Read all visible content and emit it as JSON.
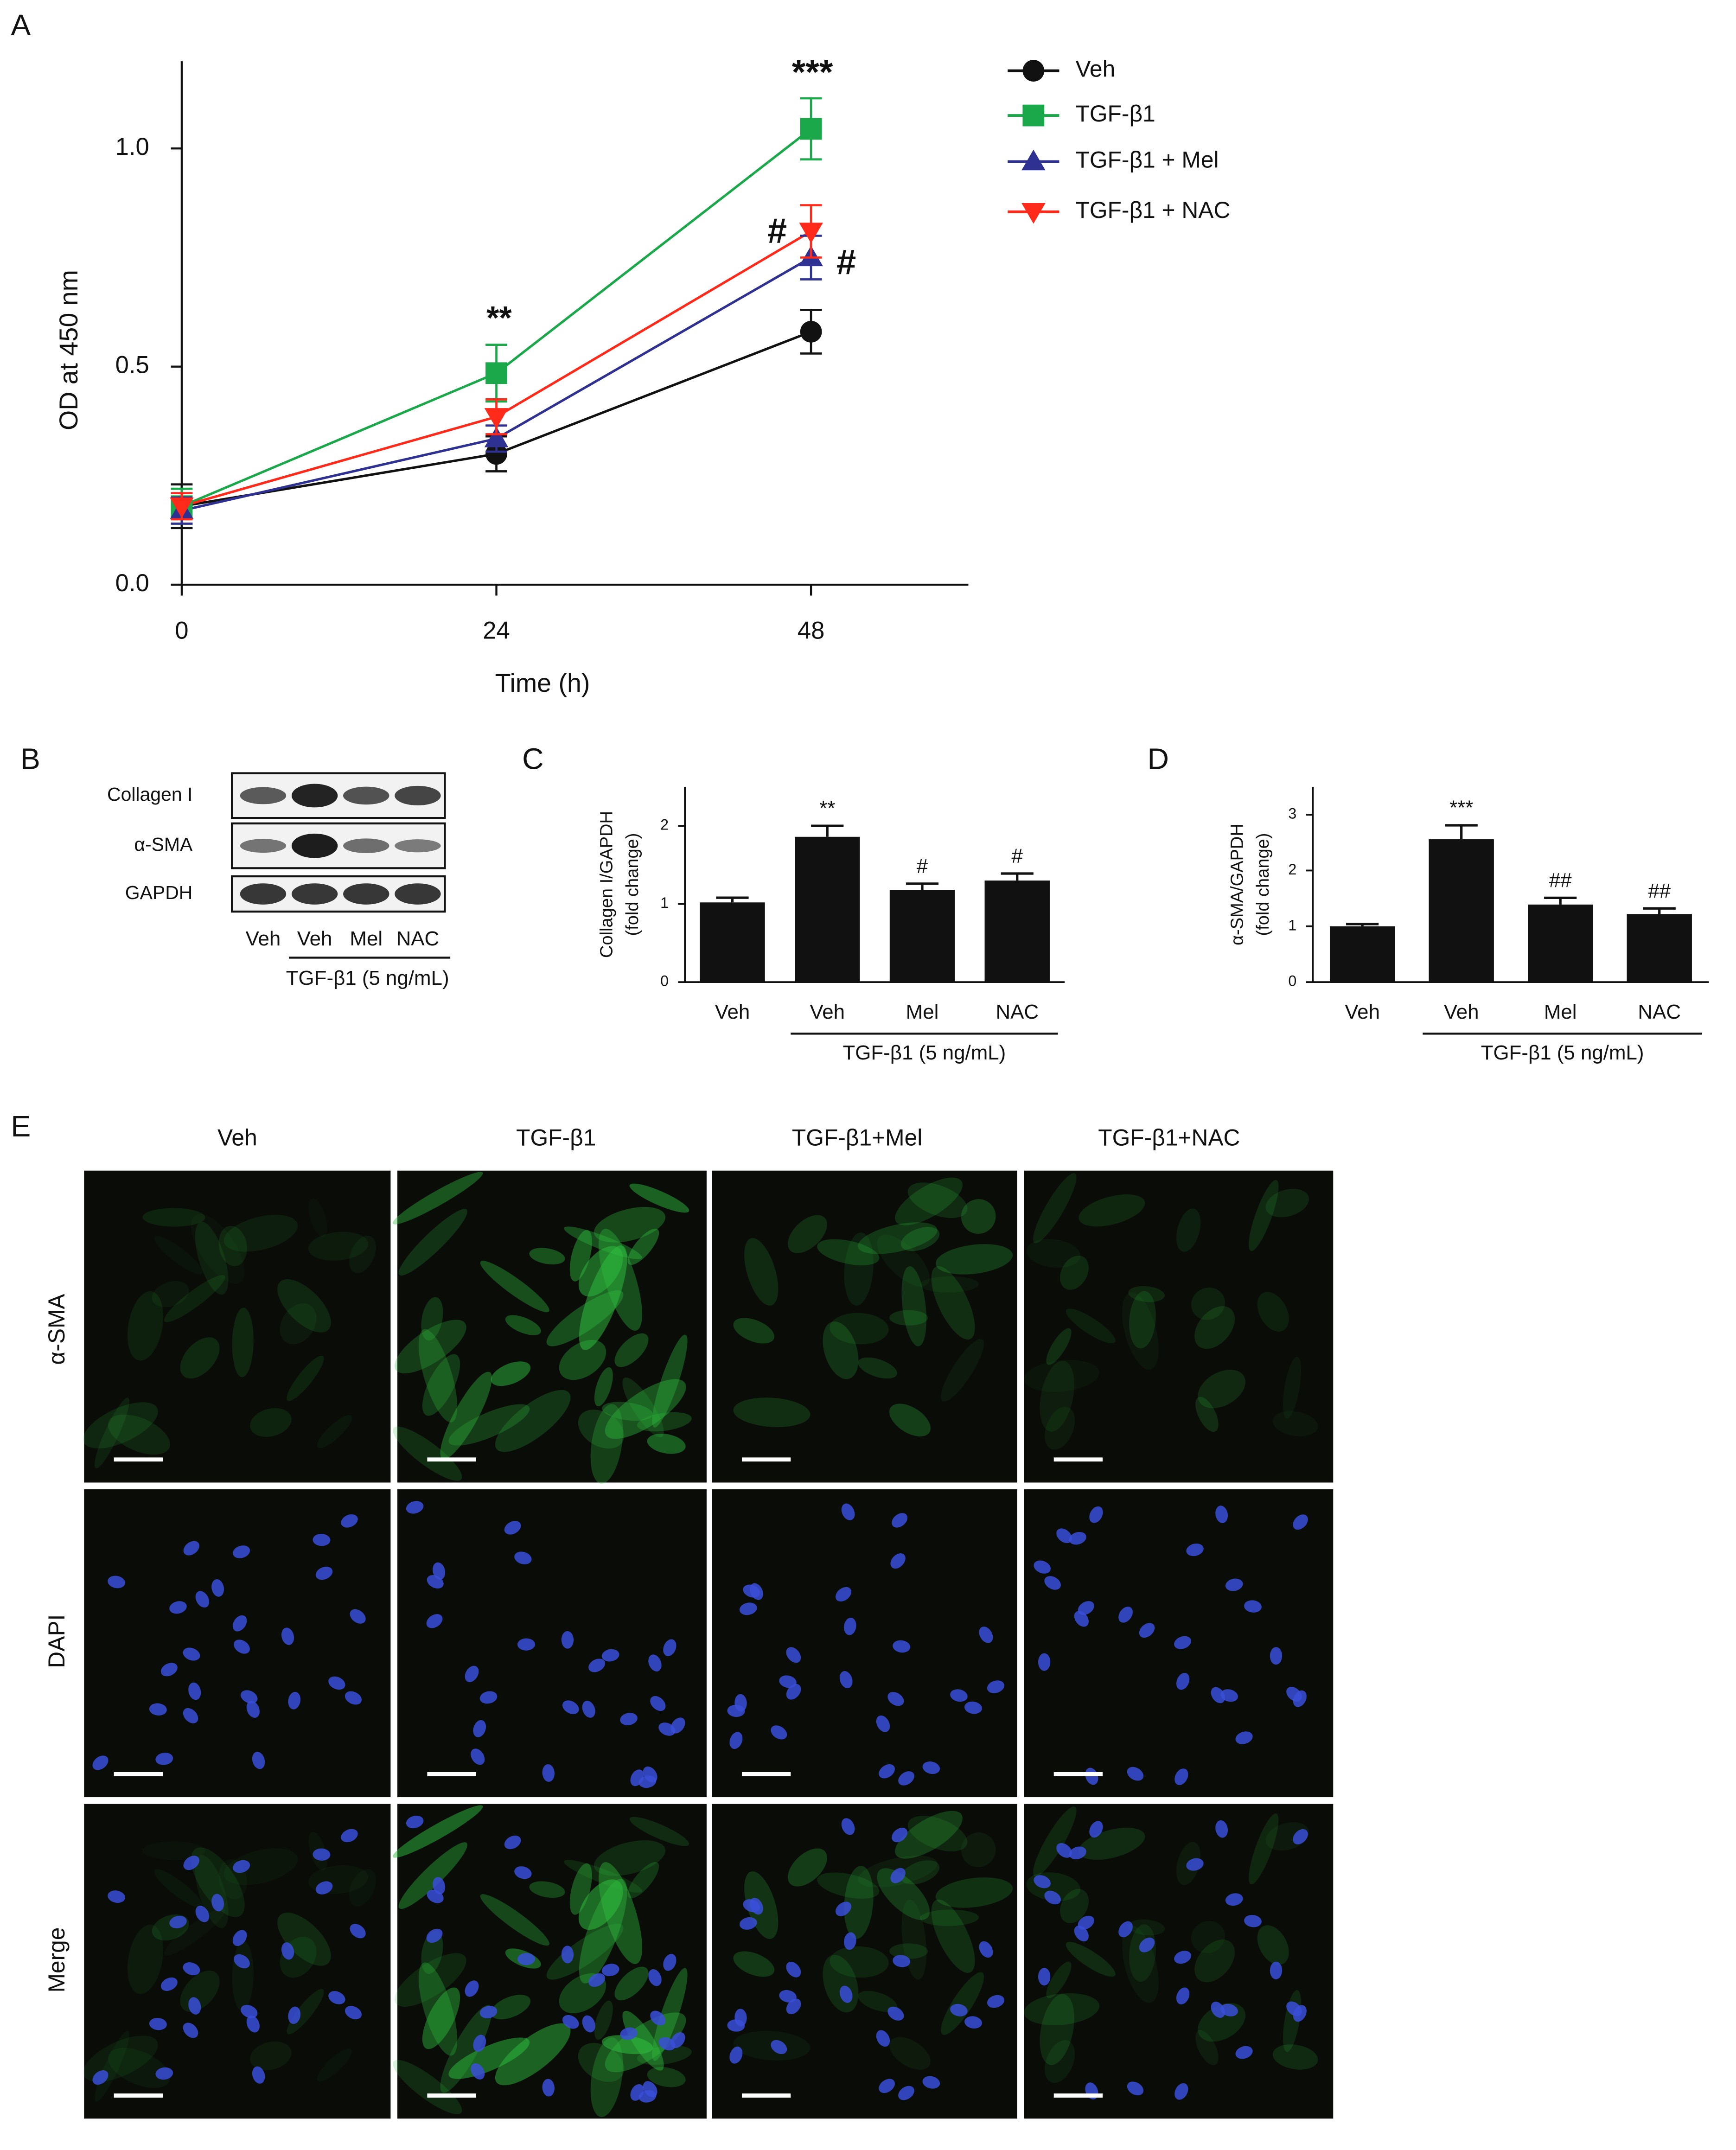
{
  "chart_data": [
    {
      "type": "line",
      "panel_label": "A",
      "xlabel": "Time (h)",
      "ylabel": "OD at 450 nm",
      "x": [
        0,
        24,
        48
      ],
      "xlim": [
        0,
        60
      ],
      "xticks": [
        0,
        24,
        48
      ],
      "ylim": [
        0,
        1.2
      ],
      "yticks": [
        {
          "value": 0,
          "label": "0.0"
        },
        0.5,
        {
          "value": 1,
          "label": "1.0"
        }
      ],
      "series": [
        {
          "name": "Veh",
          "color": "#111111",
          "marker": "circle",
          "values": [
            0.18,
            0.3,
            0.58
          ],
          "errors": [
            0.05,
            0.04,
            0.05
          ]
        },
        {
          "name": "TGF-β1",
          "color": "#1aa84a",
          "marker": "square",
          "values": [
            0.18,
            0.485,
            1.045
          ],
          "errors": [
            0.04,
            0.065,
            0.07
          ]
        },
        {
          "name": "TGF-β1 + Mel",
          "color": "#2e3192",
          "marker": "triangle-up",
          "values": [
            0.17,
            0.335,
            0.75
          ],
          "errors": [
            0.03,
            0.03,
            0.05
          ]
        },
        {
          "name": "TGF-β1 + NAC",
          "color": "#ff2a1a",
          "marker": "triangle-down",
          "values": [
            0.18,
            0.385,
            0.81
          ],
          "errors": [
            0.03,
            0.04,
            0.06
          ]
        }
      ],
      "annotations": [
        "**",
        "***",
        "#",
        "#"
      ],
      "legend": "top-right"
    },
    {
      "type": "bar",
      "panel_label": "C",
      "ylabel": [
        "Collagen I/GAPDH",
        "(fold change)"
      ],
      "categories": [
        "Veh",
        "Veh",
        "Mel",
        "NAC"
      ],
      "values": [
        1.02,
        1.86,
        1.18,
        1.3
      ],
      "errors": [
        0.06,
        0.14,
        0.08,
        0.09
      ],
      "annotations": [
        null,
        "**",
        "#",
        "#"
      ],
      "group_label": "TGF-β1 (5 ng/mL)",
      "color": "#111111",
      "ylim": [
        0,
        2.5
      ],
      "yticks": [
        0,
        1,
        2
      ]
    },
    {
      "type": "bar",
      "panel_label": "D",
      "ylabel": [
        "α-SMA/GAPDH",
        "(fold change)"
      ],
      "categories": [
        "Veh",
        "Veh",
        "Mel",
        "NAC"
      ],
      "values": [
        1.0,
        2.56,
        1.39,
        1.22
      ],
      "errors": [
        0.04,
        0.25,
        0.12,
        0.1
      ],
      "annotations": [
        null,
        "***",
        "##",
        "##"
      ],
      "group_label": "TGF-β1 (5 ng/mL)",
      "color": "#111111",
      "ylim": [
        0,
        3.5
      ],
      "yticks": [
        0,
        1,
        2,
        3
      ]
    }
  ],
  "blot": {
    "panel_label": "B",
    "rows": [
      "Collagen I",
      "α-SMA",
      "GAPDH"
    ],
    "lanes": [
      "Veh",
      "Veh",
      "Mel",
      "NAC"
    ],
    "group_label": "TGF-β1 (5 ng/mL)"
  },
  "micrographs": {
    "panel_label": "E",
    "columns": [
      "Veh",
      "TGF-β1",
      "TGF-β1+Mel",
      "TGF-β1+NAC"
    ],
    "rows": [
      "α-SMA",
      "DAPI",
      "Merge"
    ]
  }
}
